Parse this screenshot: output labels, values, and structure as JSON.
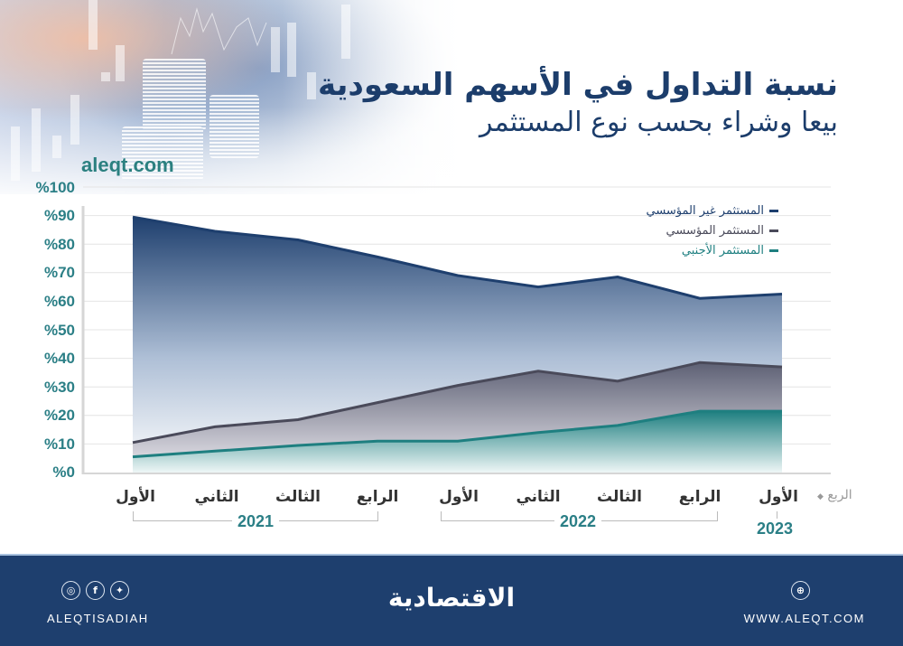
{
  "header": {
    "title_line1": "نسبة التداول في الأسهم السعودية",
    "title_line2": "بيعا وشراء بحسب نوع المستثمر",
    "site": "aleqt.com"
  },
  "axis": {
    "y_ticks": [
      "%100",
      "%90",
      "%80",
      "%70",
      "%60",
      "%50",
      "%40",
      "%30",
      "%20",
      "%10",
      "%0"
    ],
    "x_quarter_caption": "الربع",
    "x_labels": [
      "الأول",
      "الثاني",
      "الثالث",
      "الرابع",
      "الأول",
      "الثاني",
      "الثالث",
      "الرابع",
      "الأول"
    ],
    "years": [
      "2021",
      "2022",
      "2023"
    ]
  },
  "legend": [
    {
      "label": "المستثمر غير المؤسسي",
      "color": "#1e3f6e"
    },
    {
      "label": "المستثمر المؤسسي",
      "color": "#4a4a5a"
    },
    {
      "label": "المستثمر الأجنبي",
      "color": "#1e7f80"
    }
  ],
  "footer": {
    "social_icons": [
      "instagram-icon",
      "facebook-icon",
      "twitter-icon"
    ],
    "handle": "ALEQTISADIAH",
    "logo": "الاقتصادية",
    "web_icon": "globe-icon",
    "website": "WWW.ALEQT.COM"
  },
  "chart_data": {
    "type": "area",
    "title": "نسبة التداول في الأسهم السعودية بيعا وشراء بحسب نوع المستثمر",
    "xlabel": "الربع",
    "ylabel": "%",
    "ylim": [
      0,
      100
    ],
    "grid": true,
    "legend_position": "top-right",
    "categories": [
      "2021 Q1",
      "2021 Q2",
      "2021 Q3",
      "2021 Q4",
      "2022 Q1",
      "2022 Q2",
      "2022 Q3",
      "2022 Q4",
      "2023 Q1"
    ],
    "series": [
      {
        "name": "المستثمر غير المؤسسي",
        "values": [
          89.5,
          84.5,
          81.5,
          75.5,
          69,
          65,
          68.5,
          61,
          62.5
        ]
      },
      {
        "name": "المستثمر المؤسسي",
        "values": [
          10.5,
          16,
          18.5,
          24.5,
          30.5,
          35.5,
          32,
          38.5,
          37
        ]
      },
      {
        "name": "المستثمر الأجنبي",
        "values": [
          5.5,
          7.5,
          9.5,
          11,
          11,
          14,
          16.5,
          21.5,
          21.5
        ]
      }
    ]
  }
}
